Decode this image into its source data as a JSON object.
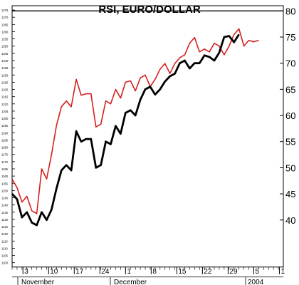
{
  "chart_data": {
    "type": "line",
    "title": "RSI, EURO/DOLLAR",
    "xlabel": "",
    "ylabel": "",
    "x_ticks": [
      "3",
      "10",
      "17",
      "24",
      "1",
      "8",
      "15",
      "22",
      "29",
      "5",
      "1"
    ],
    "month_labels": [
      "November",
      "December",
      "2004"
    ],
    "y_right_ticks": [
      "40",
      "45",
      "50",
      "55",
      "60",
      "65",
      "70",
      "75",
      "80"
    ],
    "y_left_ticks": [
      "1100",
      "1105",
      "1110",
      "1115",
      "1120",
      "1125",
      "1130",
      "1135",
      "1140",
      "1145",
      "1150",
      "1155",
      "1160",
      "1165",
      "1170",
      "1175",
      "1180",
      "1185",
      "1190",
      "1195",
      "1200",
      "1205",
      "1210",
      "1215",
      "1220",
      "1225",
      "1230",
      "1235",
      "1240",
      "1245",
      "1250",
      "1255",
      "1260",
      "1265",
      "1270",
      "1275"
    ],
    "y_right_range": [
      31,
      81
    ],
    "y_left_range": [
      1097,
      1278
    ],
    "x_range": [
      0,
      55
    ],
    "grid": false,
    "series": [
      {
        "color": "#d62020",
        "axis": "left",
        "x": [
          0,
          1,
          2,
          3,
          4,
          5,
          6,
          7,
          8,
          9,
          10,
          11,
          12,
          13,
          14,
          15,
          16,
          17,
          18,
          19,
          20,
          21,
          22,
          23,
          24,
          25,
          26,
          27,
          28,
          29,
          30,
          31,
          32,
          33,
          34,
          35,
          36,
          37,
          38,
          39,
          40,
          41,
          42,
          43,
          44,
          45,
          46,
          47,
          48,
          49,
          50
        ],
        "values": [
          1158,
          1152,
          1142,
          1146,
          1136,
          1134,
          1165,
          1158,
          1175,
          1195,
          1208,
          1212,
          1208,
          1227,
          1216,
          1217,
          1217,
          1194,
          1196,
          1212,
          1210,
          1220,
          1214,
          1225,
          1226,
          1219,
          1228,
          1230,
          1222,
          1227,
          1234,
          1238,
          1231,
          1238,
          1242,
          1244,
          1252,
          1256,
          1246,
          1248,
          1246,
          1252,
          1250,
          1244,
          1250,
          1258,
          1262,
          1250,
          1254,
          1253,
          1254
        ]
      },
      {
        "color": "#000000",
        "axis": "right",
        "x": [
          0,
          1,
          2,
          3,
          4,
          5,
          6,
          7,
          8,
          9,
          10,
          11,
          12,
          13,
          14,
          15,
          16,
          17,
          18,
          19,
          20,
          21,
          22,
          23,
          24,
          25,
          26,
          27,
          28,
          29,
          30,
          31,
          32,
          33,
          34,
          35,
          36,
          37,
          38,
          39,
          40,
          41,
          42,
          43,
          44,
          45,
          46,
          47,
          48,
          49,
          50
        ],
        "values": [
          45,
          44,
          40.5,
          41.5,
          39.5,
          39,
          41.5,
          40,
          42,
          46,
          49.5,
          50.5,
          49.5,
          57,
          55,
          55.5,
          55.5,
          50,
          50.5,
          55,
          54.5,
          58,
          56.5,
          60.5,
          61,
          60,
          63,
          65,
          65.5,
          64,
          65,
          66.5,
          67.5,
          68,
          70,
          70.5,
          69,
          70,
          70,
          71.5,
          71.2,
          70.5,
          72,
          75,
          75.2,
          74,
          75.5,
          null,
          null,
          null,
          null
        ]
      }
    ]
  }
}
